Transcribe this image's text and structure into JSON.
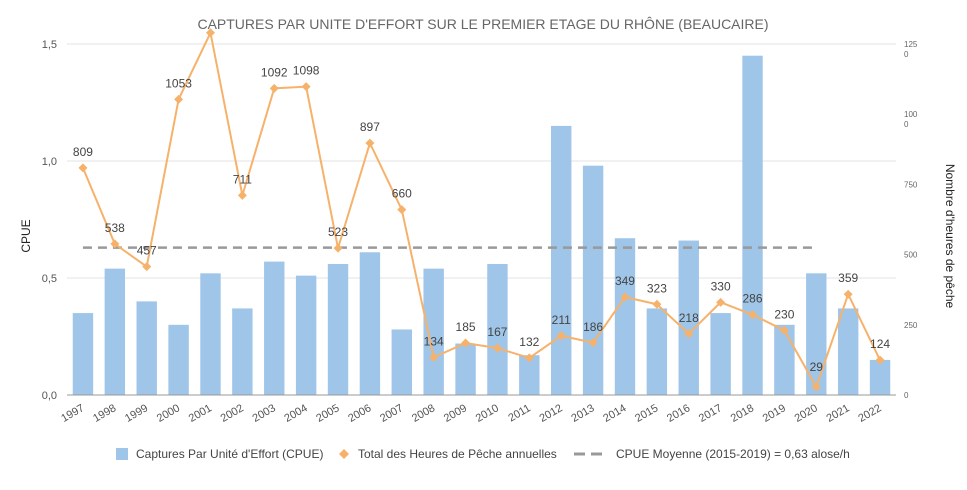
{
  "chart_data": {
    "type": "bar",
    "title": "CAPTURES PAR UNITE D'EFFORT SUR LE PREMIER ETAGE DU RHÔNE (BEAUCAIRE)",
    "ylabel": "CPUE",
    "y2label": "Nombre d'heures de pêche",
    "ylim": [
      0,
      1.5
    ],
    "y2lim": [
      0,
      1250
    ],
    "yticks": [
      "0,0",
      "0,5",
      "1,0",
      "1,5"
    ],
    "y2ticks": [
      {
        "value": 0,
        "label": "0"
      },
      {
        "value": 250,
        "label": "250"
      },
      {
        "value": 500,
        "label": "500"
      },
      {
        "value": 750,
        "label": "750"
      },
      {
        "value": 1000,
        "label": "100\n0"
      },
      {
        "value": 1250,
        "label": "125\n0"
      }
    ],
    "categories": [
      "1997",
      "1998",
      "1999",
      "2000",
      "2001",
      "2002",
      "2003",
      "2004",
      "2005",
      "2006",
      "2007",
      "2008",
      "2009",
      "2010",
      "2011",
      "2012",
      "2013",
      "2014",
      "2015",
      "2016",
      "2017",
      "2018",
      "2019",
      "2020",
      "2021",
      "2022"
    ],
    "grid": true,
    "legend_position": "bottom",
    "series": [
      {
        "name": "Captures Par Unité d'Effort (CPUE)",
        "kind": "bar",
        "axis": "left",
        "color": "#9fc5e8",
        "values": [
          0.35,
          0.54,
          0.4,
          0.3,
          0.52,
          0.37,
          0.57,
          0.51,
          0.56,
          0.61,
          0.28,
          0.54,
          0.22,
          0.56,
          0.17,
          1.15,
          0.98,
          0.67,
          0.37,
          0.66,
          0.35,
          1.45,
          0.3,
          0.52,
          0.37,
          0.15
        ]
      },
      {
        "name": "Total des Heures de Pêche annuelles",
        "kind": "line",
        "axis": "right",
        "color": "#f6b26b",
        "values": [
          809,
          538,
          457,
          1053,
          1290,
          711,
          1092,
          1098,
          523,
          897,
          660,
          134,
          185,
          167,
          132,
          211,
          186,
          349,
          323,
          218,
          330,
          286,
          230,
          29,
          359,
          124
        ],
        "labels": [
          "809",
          "538",
          "457",
          "1053",
          "",
          "711",
          "1092",
          "1098",
          "523",
          "897",
          "660",
          "134",
          "185",
          "167",
          "132",
          "211",
          "186",
          "349",
          "323",
          "218",
          "330",
          "286",
          "230",
          "29",
          "359",
          "124"
        ]
      },
      {
        "name": "CPUE Moyenne (2015-2019) = 0,63 alose/h",
        "kind": "dashed-line",
        "axis": "left",
        "color": "#999999",
        "value": 0.63
      }
    ]
  }
}
